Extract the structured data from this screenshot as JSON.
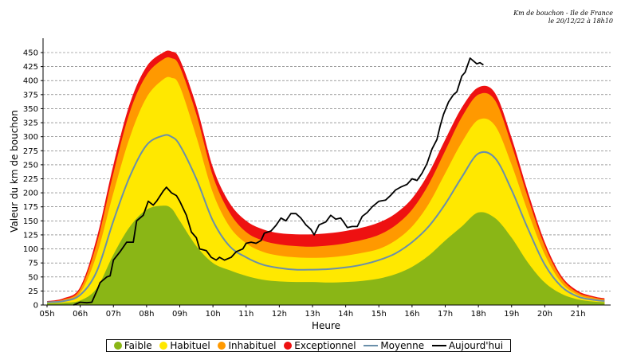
{
  "header_note": {
    "line1": "Km de bouchon - Ile de France",
    "line2": "le 20/12/22 à 18h10"
  },
  "colors": {
    "faible": "#8ab616",
    "habituel": "#ffe800",
    "inhabituel": "#ff9900",
    "exceptionnel": "#ee1111",
    "moyenne": "#6a8faa",
    "aujourdhui": "#000000"
  },
  "chart_data": {
    "type": "area",
    "ylabel": "Valeur du  km de bouchon",
    "xlabel": "Heure",
    "xlim": [
      5,
      22
    ],
    "ylim": [
      0,
      475
    ],
    "x_ticks": [
      "05h",
      "06h",
      "07h",
      "08h",
      "09h",
      "10h",
      "11h",
      "12h",
      "13h",
      "14h",
      "15h",
      "16h",
      "17h",
      "18h",
      "19h",
      "20h",
      "21h"
    ],
    "y_ticks": [
      0,
      25,
      50,
      75,
      100,
      125,
      150,
      175,
      200,
      225,
      250,
      275,
      300,
      325,
      350,
      375,
      400,
      425,
      450
    ],
    "grid": "horizontal dashed",
    "legend": [
      {
        "name": "Faible",
        "kind": "dot",
        "color_key": "faible"
      },
      {
        "name": "Habituel",
        "kind": "dot",
        "color_key": "habituel"
      },
      {
        "name": "Inhabituel",
        "kind": "dot",
        "color_key": "inhabituel"
      },
      {
        "name": "Exceptionnel",
        "kind": "dot",
        "color_key": "exceptionnel"
      },
      {
        "name": "Moyenne",
        "kind": "line",
        "color_key": "moyenne"
      },
      {
        "name": "Aujourd'hui",
        "kind": "line",
        "color_key": "aujourdhui"
      }
    ],
    "x": [
      5,
      5.5,
      6,
      6.5,
      7,
      7.5,
      8,
      8.5,
      8.75,
      9,
      9.5,
      10,
      10.5,
      11,
      11.5,
      12,
      12.5,
      13,
      13.5,
      14,
      14.5,
      15,
      15.5,
      16,
      16.5,
      17,
      17.5,
      18,
      18.5,
      19,
      19.5,
      20,
      20.5,
      21,
      21.5,
      21.8
    ],
    "series": [
      {
        "name": "Faible",
        "color_key": "faible",
        "values": [
          3,
          4,
          8,
          30,
          90,
          140,
          170,
          177,
          172,
          150,
          105,
          75,
          62,
          52,
          45,
          42,
          41,
          41,
          40,
          41,
          43,
          47,
          55,
          68,
          88,
          115,
          140,
          165,
          155,
          120,
          75,
          40,
          20,
          10,
          6,
          5
        ]
      },
      {
        "name": "Habituel",
        "color_key": "habituel",
        "values": [
          5,
          8,
          22,
          90,
          200,
          300,
          370,
          402,
          405,
          390,
          300,
          200,
          140,
          110,
          95,
          88,
          85,
          84,
          85,
          88,
          93,
          100,
          115,
          140,
          180,
          235,
          290,
          330,
          320,
          250,
          165,
          90,
          40,
          18,
          10,
          8
        ]
      },
      {
        "name": "Inhabituel",
        "color_key": "inhabituel",
        "values": [
          6,
          10,
          28,
          110,
          235,
          345,
          410,
          438,
          440,
          425,
          340,
          230,
          165,
          130,
          115,
          108,
          105,
          104,
          106,
          110,
          116,
          125,
          142,
          170,
          215,
          275,
          335,
          375,
          365,
          285,
          190,
          105,
          48,
          22,
          13,
          10
        ]
      },
      {
        "name": "Exceptionnel",
        "color_key": "exceptionnel",
        "values": [
          7,
          12,
          32,
          120,
          250,
          360,
          425,
          450,
          452,
          438,
          355,
          245,
          182,
          150,
          135,
          128,
          126,
          126,
          128,
          132,
          138,
          147,
          163,
          190,
          235,
          295,
          352,
          388,
          378,
          298,
          200,
          112,
          52,
          25,
          15,
          12
        ]
      },
      {
        "name": "Moyenne",
        "color_key": "moyenne",
        "values": [
          5,
          7,
          18,
          60,
          150,
          230,
          285,
          302,
          300,
          285,
          225,
          150,
          105,
          85,
          72,
          66,
          63,
          63,
          64,
          67,
          72,
          80,
          92,
          112,
          140,
          180,
          228,
          270,
          262,
          205,
          135,
          72,
          33,
          15,
          9,
          7
        ]
      },
      {
        "name": "Aujourd'hui",
        "color_key": "aujourdhui",
        "points": [
          [
            5.8,
            0
          ],
          [
            6,
            5
          ],
          [
            6.2,
            4
          ],
          [
            6.35,
            5
          ],
          [
            6.5,
            25
          ],
          [
            6.6,
            40
          ],
          [
            6.8,
            50
          ],
          [
            6.9,
            52
          ],
          [
            7,
            80
          ],
          [
            7.2,
            95
          ],
          [
            7.4,
            112
          ],
          [
            7.6,
            112
          ],
          [
            7.7,
            150
          ],
          [
            7.9,
            160
          ],
          [
            8.05,
            185
          ],
          [
            8.2,
            178
          ],
          [
            8.3,
            185
          ],
          [
            8.5,
            203
          ],
          [
            8.6,
            210
          ],
          [
            8.75,
            200
          ],
          [
            8.9,
            195
          ],
          [
            9,
            185
          ],
          [
            9.2,
            160
          ],
          [
            9.35,
            130
          ],
          [
            9.5,
            120
          ],
          [
            9.6,
            100
          ],
          [
            9.8,
            97
          ],
          [
            9.95,
            85
          ],
          [
            10.1,
            80
          ],
          [
            10.2,
            85
          ],
          [
            10.35,
            80
          ],
          [
            10.55,
            85
          ],
          [
            10.7,
            95
          ],
          [
            10.9,
            100
          ],
          [
            11,
            110
          ],
          [
            11.15,
            112
          ],
          [
            11.3,
            110
          ],
          [
            11.45,
            115
          ],
          [
            11.55,
            128
          ],
          [
            11.75,
            132
          ],
          [
            11.9,
            142
          ],
          [
            12.05,
            155
          ],
          [
            12.2,
            150
          ],
          [
            12.35,
            163
          ],
          [
            12.5,
            163
          ],
          [
            12.65,
            155
          ],
          [
            12.8,
            143
          ],
          [
            12.95,
            135
          ],
          [
            13.05,
            125
          ],
          [
            13.2,
            143
          ],
          [
            13.4,
            148
          ],
          [
            13.55,
            160
          ],
          [
            13.7,
            153
          ],
          [
            13.85,
            155
          ],
          [
            13.95,
            147
          ],
          [
            14.05,
            138
          ],
          [
            14.2,
            140
          ],
          [
            14.35,
            140
          ],
          [
            14.5,
            158
          ],
          [
            14.65,
            165
          ],
          [
            14.8,
            175
          ],
          [
            15,
            185
          ],
          [
            15.2,
            187
          ],
          [
            15.35,
            195
          ],
          [
            15.5,
            205
          ],
          [
            15.65,
            210
          ],
          [
            15.85,
            215
          ],
          [
            16,
            225
          ],
          [
            16.15,
            222
          ],
          [
            16.3,
            235
          ],
          [
            16.45,
            252
          ],
          [
            16.6,
            278
          ],
          [
            16.75,
            295
          ],
          [
            16.85,
            320
          ],
          [
            16.95,
            340
          ],
          [
            17.1,
            362
          ],
          [
            17.25,
            375
          ],
          [
            17.35,
            380
          ],
          [
            17.5,
            408
          ],
          [
            17.6,
            415
          ],
          [
            17.75,
            440
          ],
          [
            17.85,
            435
          ],
          [
            17.95,
            430
          ],
          [
            18.05,
            432
          ],
          [
            18.15,
            428
          ]
        ]
      }
    ]
  }
}
